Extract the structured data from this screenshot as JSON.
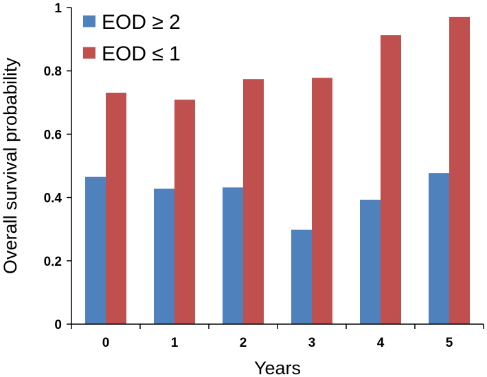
{
  "chart_data": {
    "type": "bar",
    "title": "",
    "xlabel": "Years",
    "ylabel": "Overall survival probability",
    "categories": [
      "0",
      "1",
      "2",
      "3",
      "4",
      "5"
    ],
    "series": [
      {
        "name": "EOD ≥ 2",
        "color": "#4f81bd",
        "values": [
          0.465,
          0.428,
          0.432,
          0.298,
          0.393,
          0.477
        ]
      },
      {
        "name": "EOD ≤ 1",
        "color": "#c0504d",
        "values": [
          0.731,
          0.709,
          0.774,
          0.778,
          0.913,
          0.97
        ]
      }
    ],
    "ylim": [
      0,
      1
    ],
    "yticks": [
      0,
      0.2,
      0.4,
      0.6,
      0.8,
      1
    ],
    "ytick_labels": [
      "0",
      "0.2",
      "0.4",
      "0.6",
      "0.8",
      "1"
    ],
    "grid": false,
    "legend_position": "top-left"
  }
}
